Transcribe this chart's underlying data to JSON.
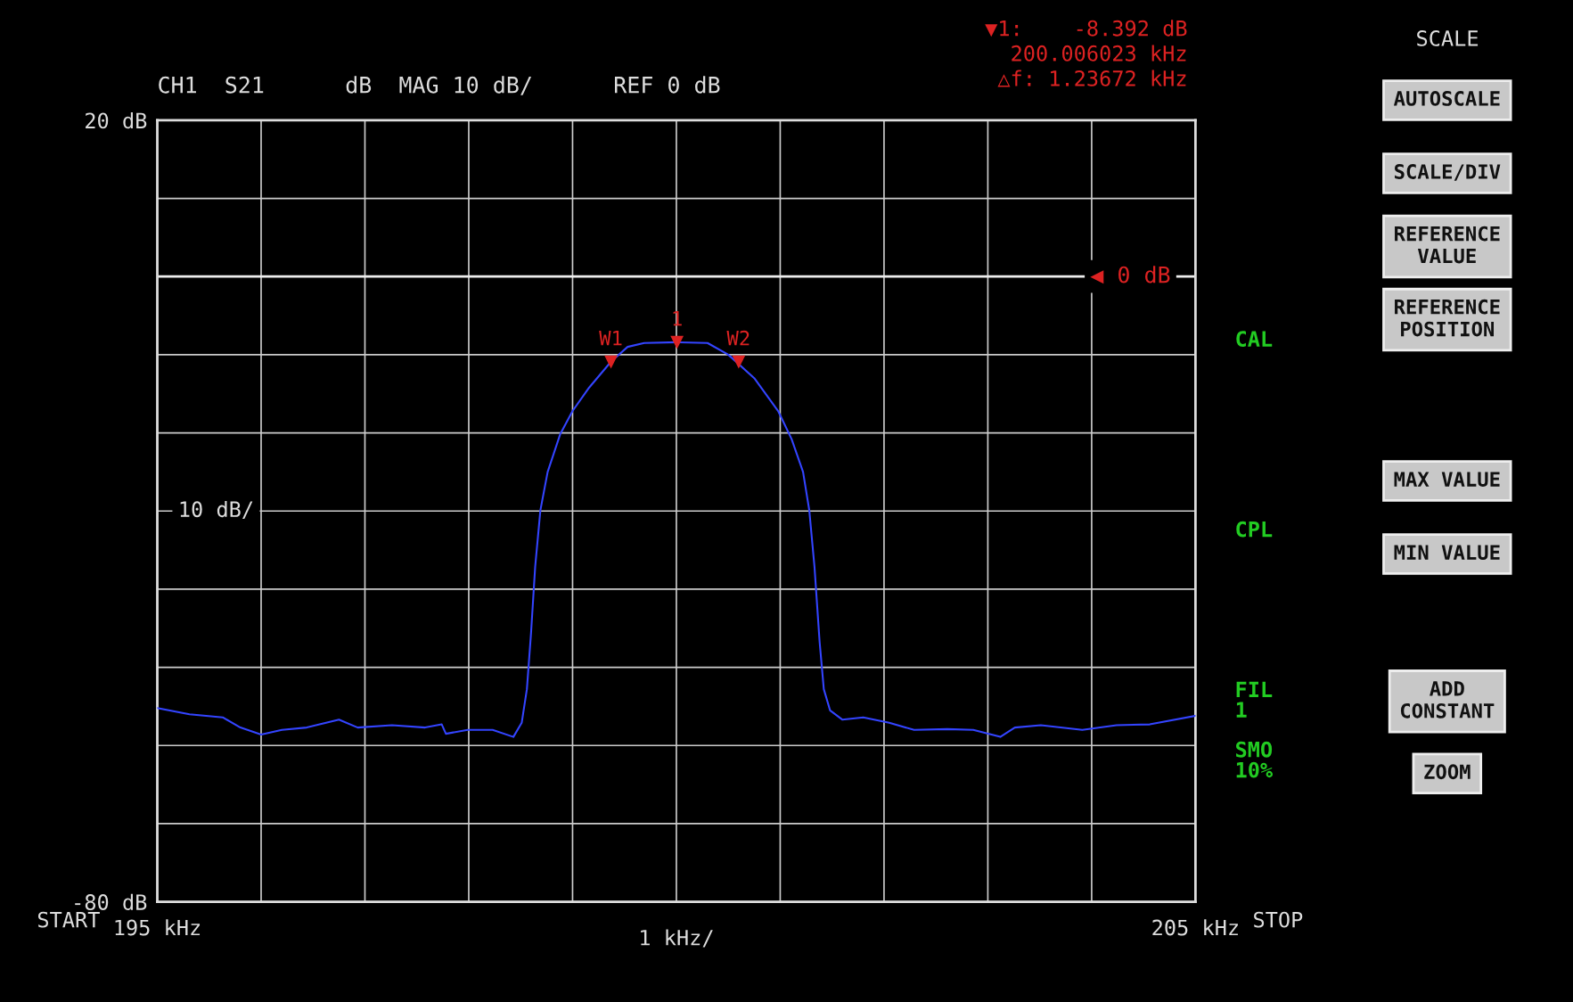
{
  "chart_data": {
    "type": "line",
    "title": "CH1  S21      dB  MAG 10 dB/      REF 0 dB",
    "xlabel": "1 kHz/",
    "x": [
      195.0,
      195.31,
      195.63,
      195.8,
      196.0,
      196.2,
      196.44,
      196.75,
      196.93,
      197.26,
      197.58,
      197.74,
      197.78,
      197.99,
      198.23,
      198.43,
      198.51,
      198.56,
      198.6,
      198.64,
      198.69,
      198.76,
      198.88,
      199.0,
      199.16,
      199.37,
      199.53,
      199.69,
      200.01,
      200.3,
      200.5,
      200.75,
      200.98,
      201.11,
      201.22,
      201.28,
      201.33,
      201.38,
      201.42,
      201.48,
      201.6,
      201.8,
      202.05,
      202.29,
      202.61,
      202.86,
      203.12,
      203.26,
      203.51,
      203.91,
      204.24,
      204.56,
      205.0
    ],
    "series": [
      {
        "color": "#3344ff",
        "values": [
          -55.2,
          -56.0,
          -56.4,
          -57.7,
          -58.6,
          -58.0,
          -57.7,
          -56.7,
          -57.7,
          -57.4,
          -57.7,
          -57.3,
          -58.5,
          -58.0,
          -58.0,
          -58.9,
          -57.1,
          -52.8,
          -45.6,
          -37.1,
          -29.9,
          -25.0,
          -20.2,
          -17.2,
          -14.2,
          -10.9,
          -9.0,
          -8.5,
          -8.4,
          -8.5,
          -10.0,
          -13.0,
          -17.2,
          -20.8,
          -25.0,
          -29.9,
          -37.1,
          -46.8,
          -52.8,
          -55.5,
          -56.7,
          -56.4,
          -57.1,
          -58.0,
          -57.9,
          -58.0,
          -58.9,
          -57.7,
          -57.4,
          -58.0,
          -57.4,
          -57.3,
          -56.2
        ]
      }
    ],
    "xlim": [
      195,
      205
    ],
    "ylim": [
      -80,
      20
    ],
    "xticks": [
      {
        "value": 195,
        "label": "195 kHz"
      },
      {
        "value": 196,
        "label": null
      },
      {
        "value": 197,
        "label": null
      },
      {
        "value": 198,
        "label": null
      },
      {
        "value": 199,
        "label": null
      },
      {
        "value": 200,
        "label": null
      },
      {
        "value": 201,
        "label": null
      },
      {
        "value": 202,
        "label": null
      },
      {
        "value": 203,
        "label": null
      },
      {
        "value": 204,
        "label": null
      },
      {
        "value": 205,
        "label": "205 kHz"
      }
    ],
    "yticks": [
      {
        "value": -80,
        "label": "-80 dB"
      },
      {
        "value": -70,
        "label": null
      },
      {
        "value": -60,
        "label": null
      },
      {
        "value": -50,
        "label": null
      },
      {
        "value": -40,
        "label": null
      },
      {
        "value": -30,
        "label": null
      },
      {
        "value": -20,
        "label": null
      },
      {
        "value": -10,
        "label": null
      },
      {
        "value": 0,
        "label": null
      },
      {
        "value": 10,
        "label": null
      },
      {
        "value": 20,
        "label": "20 dB"
      }
    ],
    "grid": true,
    "line_style": "solid",
    "marker": "none",
    "ref_lines": [
      {
        "axis": "y",
        "value": 0,
        "label": "◀ 0 dB"
      }
    ],
    "annotations": [
      {
        "text": "1",
        "x": 200.006,
        "y": -8.392
      },
      {
        "text": "W1",
        "x": 199.37,
        "y": -10.9
      },
      {
        "text": "W2",
        "x": 200.6,
        "y": -10.9
      },
      "10 dB/",
      "▼1:    -8.392 dB",
      "200.006023 kHz",
      "△f: 1.23672 kHz",
      "SCALE",
      "AUTOSCALE",
      "SCALE/DIV",
      "REFERENCE\nVALUE",
      "REFERENCE\nPOSITION",
      "MAX VALUE",
      "MIN VALUE",
      "ADD\nCONSTANT",
      "ZOOM",
      "CAL",
      "CPL",
      "FIL\n1",
      "SMO\n10%",
      "START",
      "STOP"
    ]
  }
}
